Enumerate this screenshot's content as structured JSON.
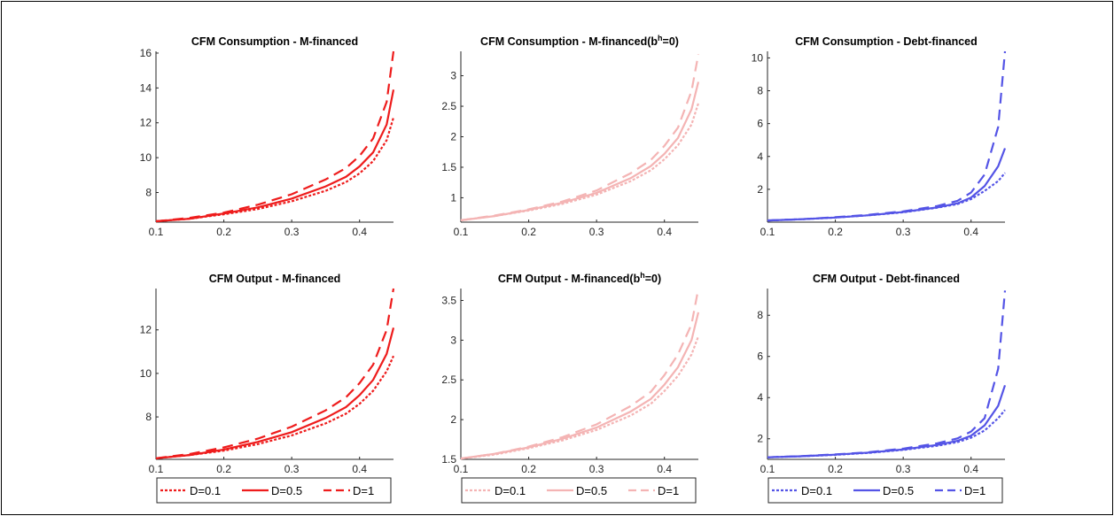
{
  "chart_data": [
    {
      "type": "line",
      "row": 0,
      "col": 0,
      "title": "CFM Consumption - M-financed",
      "title_sup": "",
      "title_after": "",
      "color": "#ee1c1c",
      "xlim": [
        0.1,
        0.45
      ],
      "ylim": [
        6.3,
        16.1
      ],
      "xticks": [
        0.1,
        0.2,
        0.3,
        0.4
      ],
      "yticks": [
        8,
        10,
        12,
        14,
        16
      ],
      "series": [
        {
          "name": "D=0.1",
          "style": "dotted",
          "x": [
            0.1,
            0.15,
            0.2,
            0.25,
            0.3,
            0.35,
            0.38,
            0.4,
            0.42,
            0.44,
            0.45
          ],
          "y": [
            6.35,
            6.5,
            6.75,
            7.05,
            7.5,
            8.1,
            8.6,
            9.1,
            9.8,
            11.0,
            12.3
          ]
        },
        {
          "name": "D=0.5",
          "style": "solid",
          "x": [
            0.1,
            0.15,
            0.2,
            0.25,
            0.3,
            0.35,
            0.38,
            0.4,
            0.42,
            0.44,
            0.45
          ],
          "y": [
            6.35,
            6.5,
            6.8,
            7.15,
            7.65,
            8.35,
            8.9,
            9.5,
            10.3,
            11.9,
            13.9
          ]
        },
        {
          "name": "D=1",
          "style": "dashed",
          "x": [
            0.1,
            0.15,
            0.2,
            0.25,
            0.3,
            0.35,
            0.38,
            0.4,
            0.42,
            0.44,
            0.45
          ],
          "y": [
            6.35,
            6.55,
            6.85,
            7.3,
            7.9,
            8.75,
            9.4,
            10.1,
            11.1,
            13.2,
            16.1
          ]
        }
      ]
    },
    {
      "type": "line",
      "row": 0,
      "col": 1,
      "title": "CFM Consumption - M-financed(b",
      "title_sup": "h",
      "title_after": "=0)",
      "color": "#f4b4b4",
      "xlim": [
        0.1,
        0.45
      ],
      "ylim": [
        0.6,
        3.4
      ],
      "xticks": [
        0.1,
        0.2,
        0.3,
        0.4
      ],
      "yticks": [
        1,
        1.5,
        2,
        2.5,
        3
      ],
      "series": [
        {
          "name": "D=0.1",
          "style": "dotted",
          "x": [
            0.1,
            0.15,
            0.2,
            0.25,
            0.3,
            0.35,
            0.38,
            0.4,
            0.42,
            0.44,
            0.45
          ],
          "y": [
            0.63,
            0.7,
            0.79,
            0.9,
            1.05,
            1.27,
            1.45,
            1.63,
            1.86,
            2.2,
            2.55
          ]
        },
        {
          "name": "D=0.5",
          "style": "solid",
          "x": [
            0.1,
            0.15,
            0.2,
            0.25,
            0.3,
            0.35,
            0.38,
            0.4,
            0.42,
            0.44,
            0.45
          ],
          "y": [
            0.63,
            0.7,
            0.8,
            0.92,
            1.08,
            1.32,
            1.52,
            1.72,
            1.98,
            2.45,
            2.9
          ]
        },
        {
          "name": "D=1",
          "style": "dashed",
          "x": [
            0.1,
            0.15,
            0.2,
            0.25,
            0.3,
            0.35,
            0.38,
            0.4,
            0.42,
            0.44,
            0.45
          ],
          "y": [
            0.63,
            0.71,
            0.81,
            0.94,
            1.12,
            1.4,
            1.62,
            1.85,
            2.15,
            2.75,
            3.35
          ]
        }
      ]
    },
    {
      "type": "line",
      "row": 0,
      "col": 2,
      "title": "CFM Consumption - Debt-financed",
      "title_sup": "",
      "title_after": "",
      "color": "#5454e6",
      "xlim": [
        0.1,
        0.45
      ],
      "ylim": [
        0.0,
        10.4
      ],
      "xticks": [
        0.1,
        0.2,
        0.3,
        0.4
      ],
      "yticks": [
        2,
        4,
        6,
        8,
        10
      ],
      "series": [
        {
          "name": "D=0.1",
          "style": "dotted",
          "x": [
            0.1,
            0.15,
            0.2,
            0.25,
            0.3,
            0.35,
            0.38,
            0.4,
            0.42,
            0.44,
            0.45
          ],
          "y": [
            0.1,
            0.18,
            0.28,
            0.42,
            0.6,
            0.88,
            1.1,
            1.4,
            1.9,
            2.5,
            3.0
          ]
        },
        {
          "name": "D=0.5",
          "style": "solid",
          "x": [
            0.1,
            0.15,
            0.2,
            0.25,
            0.3,
            0.35,
            0.38,
            0.4,
            0.42,
            0.44,
            0.45
          ],
          "y": [
            0.1,
            0.18,
            0.28,
            0.42,
            0.62,
            0.9,
            1.15,
            1.5,
            2.2,
            3.4,
            4.5
          ]
        },
        {
          "name": "D=1",
          "style": "dashed",
          "x": [
            0.1,
            0.15,
            0.2,
            0.25,
            0.3,
            0.35,
            0.38,
            0.4,
            0.42,
            0.44,
            0.45
          ],
          "y": [
            0.1,
            0.18,
            0.3,
            0.45,
            0.66,
            0.98,
            1.3,
            1.8,
            2.9,
            5.8,
            10.4
          ]
        }
      ]
    },
    {
      "type": "line",
      "row": 1,
      "col": 0,
      "title": "CFM Output - M-financed",
      "title_sup": "",
      "title_after": "",
      "color": "#ee1c1c",
      "xlim": [
        0.1,
        0.45
      ],
      "ylim": [
        6.05,
        13.9
      ],
      "xticks": [
        0.1,
        0.2,
        0.3,
        0.4
      ],
      "yticks": [
        8,
        10,
        12
      ],
      "series": [
        {
          "name": "D=0.1",
          "style": "dotted",
          "x": [
            0.1,
            0.15,
            0.2,
            0.25,
            0.3,
            0.35,
            0.38,
            0.4,
            0.42,
            0.44,
            0.45
          ],
          "y": [
            6.1,
            6.25,
            6.45,
            6.75,
            7.15,
            7.7,
            8.15,
            8.6,
            9.2,
            10.1,
            10.8
          ]
        },
        {
          "name": "D=0.5",
          "style": "solid",
          "x": [
            0.1,
            0.15,
            0.2,
            0.25,
            0.3,
            0.35,
            0.38,
            0.4,
            0.42,
            0.44,
            0.45
          ],
          "y": [
            6.1,
            6.25,
            6.5,
            6.85,
            7.3,
            7.95,
            8.45,
            9.0,
            9.7,
            10.9,
            12.1
          ]
        },
        {
          "name": "D=1",
          "style": "dashed",
          "x": [
            0.1,
            0.15,
            0.2,
            0.25,
            0.3,
            0.35,
            0.38,
            0.4,
            0.42,
            0.44,
            0.45
          ],
          "y": [
            6.1,
            6.3,
            6.6,
            7.0,
            7.55,
            8.3,
            8.9,
            9.55,
            10.4,
            12.0,
            13.9
          ]
        }
      ]
    },
    {
      "type": "line",
      "row": 1,
      "col": 1,
      "title": "CFM Output - M-financed(b",
      "title_sup": "h",
      "title_after": "=0)",
      "color": "#f4b4b4",
      "xlim": [
        0.1,
        0.45
      ],
      "ylim": [
        1.5,
        3.65
      ],
      "xticks": [
        0.1,
        0.2,
        0.3,
        0.4
      ],
      "yticks": [
        1.5,
        2,
        2.5,
        3,
        3.5
      ],
      "series": [
        {
          "name": "D=0.1",
          "style": "dotted",
          "x": [
            0.1,
            0.15,
            0.2,
            0.25,
            0.3,
            0.35,
            0.38,
            0.4,
            0.42,
            0.44,
            0.45
          ],
          "y": [
            1.51,
            1.56,
            1.64,
            1.74,
            1.87,
            2.05,
            2.2,
            2.36,
            2.55,
            2.82,
            3.05
          ]
        },
        {
          "name": "D=0.5",
          "style": "solid",
          "x": [
            0.1,
            0.15,
            0.2,
            0.25,
            0.3,
            0.35,
            0.38,
            0.4,
            0.42,
            0.44,
            0.45
          ],
          "y": [
            1.51,
            1.57,
            1.65,
            1.76,
            1.9,
            2.1,
            2.26,
            2.44,
            2.66,
            3.0,
            3.35
          ]
        },
        {
          "name": "D=1",
          "style": "dashed",
          "x": [
            0.1,
            0.15,
            0.2,
            0.25,
            0.3,
            0.35,
            0.38,
            0.4,
            0.42,
            0.44,
            0.45
          ],
          "y": [
            1.51,
            1.57,
            1.66,
            1.78,
            1.94,
            2.17,
            2.35,
            2.56,
            2.82,
            3.2,
            3.65
          ]
        }
      ]
    },
    {
      "type": "line",
      "row": 1,
      "col": 2,
      "title": "CFM Output - Debt-financed",
      "title_sup": "",
      "title_after": "",
      "color": "#5454e6",
      "xlim": [
        0.1,
        0.45
      ],
      "ylim": [
        1.0,
        9.3
      ],
      "xticks": [
        0.1,
        0.2,
        0.3,
        0.4
      ],
      "yticks": [
        2,
        4,
        6,
        8
      ],
      "series": [
        {
          "name": "D=0.1",
          "style": "dotted",
          "x": [
            0.1,
            0.15,
            0.2,
            0.25,
            0.3,
            0.35,
            0.38,
            0.4,
            0.42,
            0.44,
            0.45
          ],
          "y": [
            1.1,
            1.15,
            1.22,
            1.32,
            1.46,
            1.66,
            1.84,
            2.05,
            2.4,
            3.0,
            3.4
          ]
        },
        {
          "name": "D=0.5",
          "style": "solid",
          "x": [
            0.1,
            0.15,
            0.2,
            0.25,
            0.3,
            0.35,
            0.38,
            0.4,
            0.42,
            0.44,
            0.45
          ],
          "y": [
            1.1,
            1.15,
            1.23,
            1.33,
            1.48,
            1.7,
            1.9,
            2.15,
            2.65,
            3.6,
            4.6
          ]
        },
        {
          "name": "D=1",
          "style": "dashed",
          "x": [
            0.1,
            0.15,
            0.2,
            0.25,
            0.3,
            0.35,
            0.38,
            0.4,
            0.42,
            0.44,
            0.45
          ],
          "y": [
            1.1,
            1.16,
            1.24,
            1.35,
            1.52,
            1.78,
            2.02,
            2.35,
            3.0,
            5.4,
            9.2
          ]
        }
      ]
    }
  ],
  "legends": [
    {
      "color": "#ee1c1c",
      "entries": [
        "D=0.1",
        "D=0.5",
        "D=1"
      ]
    },
    {
      "color": "#f4b4b4",
      "entries": [
        "D=0.1",
        "D=0.5",
        "D=1"
      ]
    },
    {
      "color": "#5454e6",
      "entries": [
        "D=0.1",
        "D=0.5",
        "D=1"
      ]
    }
  ]
}
